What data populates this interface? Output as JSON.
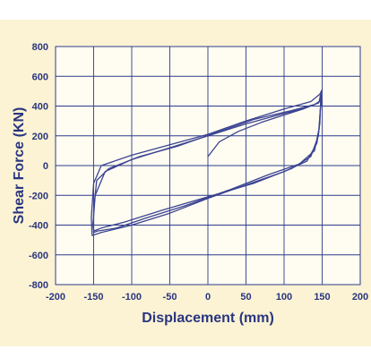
{
  "colors": {
    "panel": "#fbf3d3",
    "plot": "#fffdf1",
    "grid": "#2d3a8c",
    "curve": "#3a4392",
    "text": "#2a3580"
  },
  "chart_data": {
    "type": "line",
    "title": "",
    "xlabel": "Displacement (mm)",
    "ylabel": "Shear Force (KN)",
    "xlim": [
      -200,
      200
    ],
    "ylim": [
      -800,
      800
    ],
    "xticks": [
      -200,
      -150,
      -100,
      -50,
      0,
      50,
      100,
      150,
      200
    ],
    "yticks": [
      -800,
      -600,
      -400,
      -200,
      0,
      200,
      400,
      600,
      800
    ],
    "grid": true,
    "legend": "none",
    "series": [
      {
        "name": "",
        "x": [
          0,
          15,
          40,
          70,
          100,
          125,
          140,
          146,
          148,
          148,
          145,
          135,
          110,
          60,
          0,
          -60,
          -110,
          -140,
          -150,
          -151,
          -148,
          -135,
          -100,
          -50,
          0,
          50,
          100,
          130,
          145,
          148,
          148
        ],
        "y": [
          60,
          160,
          230,
          290,
          340,
          380,
          410,
          430,
          480,
          400,
          200,
          60,
          -20,
          -120,
          -210,
          -300,
          -380,
          -420,
          -440,
          -400,
          -200,
          -40,
          40,
          120,
          200,
          280,
          350,
          390,
          420,
          450,
          420
        ]
      },
      {
        "name": "",
        "x": [
          148,
          147,
          143,
          130,
          100,
          50,
          0,
          -50,
          -100,
          -140,
          -152,
          -153,
          -150,
          -140,
          -100,
          -50,
          0,
          50,
          100,
          135,
          147,
          150,
          148
        ],
        "y": [
          420,
          280,
          150,
          30,
          -40,
          -130,
          -220,
          -320,
          -400,
          -450,
          -470,
          -350,
          -120,
          0,
          70,
          140,
          210,
          300,
          380,
          430,
          480,
          510,
          420
        ]
      },
      {
        "name": "",
        "x": [
          148,
          146,
          140,
          120,
          80,
          30,
          -30,
          -80,
          -120,
          -145,
          -150,
          -150,
          -146,
          -130,
          -90,
          -40,
          10,
          60,
          110,
          140,
          150,
          149
        ],
        "y": [
          410,
          250,
          100,
          10,
          -60,
          -160,
          -270,
          -350,
          -420,
          -440,
          -450,
          -300,
          -100,
          -20,
          60,
          130,
          220,
          310,
          370,
          410,
          440,
          400
        ]
      }
    ]
  }
}
